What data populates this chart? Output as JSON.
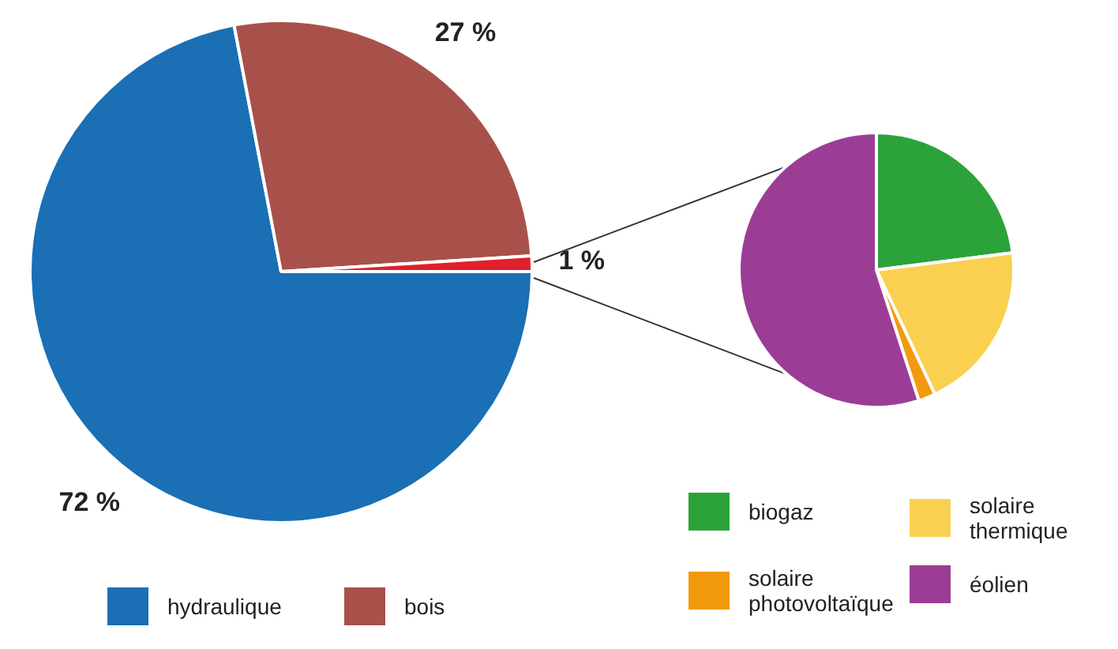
{
  "chart_data": [
    {
      "type": "pie",
      "categories": [
        "hydraulique",
        "bois",
        null
      ],
      "values": [
        72,
        27,
        1
      ],
      "colors": [
        "#1a6fb5",
        "#a8514b",
        "#e0202a"
      ],
      "value_labels": [
        "72 %",
        "27 %",
        "1 %"
      ],
      "legend": "bottom"
    },
    {
      "type": "pie",
      "categories": [
        "biogaz",
        "solaire thermique",
        "solaire photovoltaïque",
        "éolien"
      ],
      "values": [
        23,
        20,
        2,
        55
      ],
      "colors": [
        "#2ca33a",
        "#f9d04f",
        "#f29a0e",
        "#9b3d95"
      ],
      "legend": "bottom"
    }
  ]
}
